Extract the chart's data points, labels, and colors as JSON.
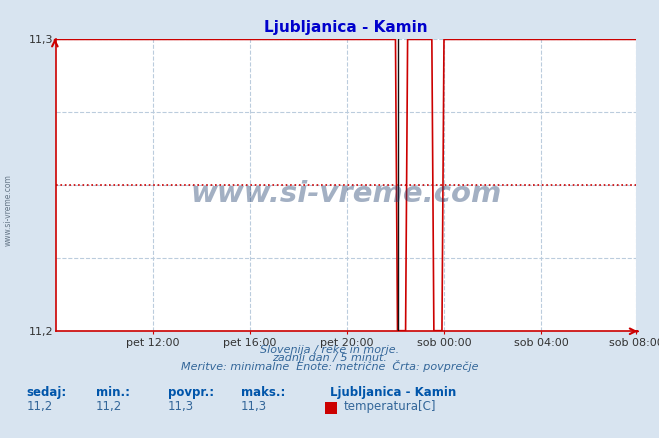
{
  "title": "Ljubljanica - Kamin",
  "xlabel_texts": [
    "pet 12:00",
    "pet 16:00",
    "pet 20:00",
    "sob 00:00",
    "sob 04:00",
    "sob 08:00"
  ],
  "ylabel_min": 11.2,
  "ylabel_max": 11.3,
  "ytick_labels": [
    "11,2",
    "11,3"
  ],
  "ytick_vals": [
    11.2,
    11.3
  ],
  "line_color": "#cc0000",
  "black_line_color": "#111111",
  "dotted_line_color": "#cc0000",
  "dotted_line_y": 11.25,
  "plot_bg_color": "#ffffff",
  "fig_bg_color": "#d8e4f0",
  "grid_color": "#bbccdd",
  "title_color": "#0000cc",
  "axis_color": "#cc0000",
  "footer_color": "#336699",
  "stats_label_color": "#0055aa",
  "stats_value_color": "#336699",
  "footer_line1": "Slovenija / reke in morje.",
  "footer_line2": "zadnji dan / 5 minut.",
  "footer_line3": "Meritve: minimalne  Enote: metrične  Črta: povprečje",
  "stats_labels": [
    "sedaj:",
    "min.:",
    "povpr.:",
    "maks.:"
  ],
  "stats_values": [
    "11,2",
    "11,2",
    "11,3",
    "11,3"
  ],
  "legend_title": "Ljubljanica - Kamin",
  "legend_label": "temperatura[C]",
  "legend_color": "#cc0000",
  "watermark": "www.si-vreme.com",
  "watermark_color": "#1a3a6b",
  "sidebar_text": "www.si-vreme.com",
  "n_points": 288,
  "value_high": 11.3,
  "value_low": 11.2,
  "drop1_idx": 168,
  "rise1_idx": 174,
  "drop2_idx": 186,
  "rise2_idx": 192,
  "black_line_idx": 169
}
